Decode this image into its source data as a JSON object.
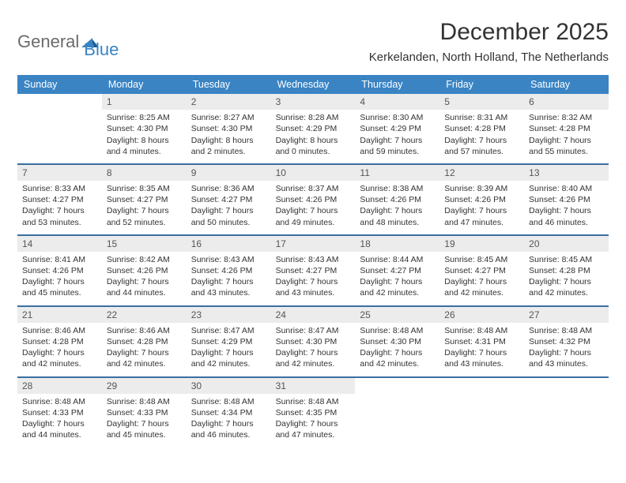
{
  "logo": {
    "general": "General",
    "blue": "Blue"
  },
  "title": "December 2025",
  "location": "Kerkelanden, North Holland, The Netherlands",
  "colors": {
    "header_bg": "#3a84c4",
    "header_text": "#ffffff",
    "daynum_bg": "#ececec",
    "week_border": "#3a6fa0",
    "text": "#333333",
    "logo_gray": "#6b6b6b",
    "logo_blue": "#3a84c4"
  },
  "weekdays": [
    "Sunday",
    "Monday",
    "Tuesday",
    "Wednesday",
    "Thursday",
    "Friday",
    "Saturday"
  ],
  "weeks": [
    [
      {
        "n": "",
        "sr": "",
        "ss": "",
        "dl": ""
      },
      {
        "n": "1",
        "sr": "Sunrise: 8:25 AM",
        "ss": "Sunset: 4:30 PM",
        "dl": "Daylight: 8 hours and 4 minutes."
      },
      {
        "n": "2",
        "sr": "Sunrise: 8:27 AM",
        "ss": "Sunset: 4:30 PM",
        "dl": "Daylight: 8 hours and 2 minutes."
      },
      {
        "n": "3",
        "sr": "Sunrise: 8:28 AM",
        "ss": "Sunset: 4:29 PM",
        "dl": "Daylight: 8 hours and 0 minutes."
      },
      {
        "n": "4",
        "sr": "Sunrise: 8:30 AM",
        "ss": "Sunset: 4:29 PM",
        "dl": "Daylight: 7 hours and 59 minutes."
      },
      {
        "n": "5",
        "sr": "Sunrise: 8:31 AM",
        "ss": "Sunset: 4:28 PM",
        "dl": "Daylight: 7 hours and 57 minutes."
      },
      {
        "n": "6",
        "sr": "Sunrise: 8:32 AM",
        "ss": "Sunset: 4:28 PM",
        "dl": "Daylight: 7 hours and 55 minutes."
      }
    ],
    [
      {
        "n": "7",
        "sr": "Sunrise: 8:33 AM",
        "ss": "Sunset: 4:27 PM",
        "dl": "Daylight: 7 hours and 53 minutes."
      },
      {
        "n": "8",
        "sr": "Sunrise: 8:35 AM",
        "ss": "Sunset: 4:27 PM",
        "dl": "Daylight: 7 hours and 52 minutes."
      },
      {
        "n": "9",
        "sr": "Sunrise: 8:36 AM",
        "ss": "Sunset: 4:27 PM",
        "dl": "Daylight: 7 hours and 50 minutes."
      },
      {
        "n": "10",
        "sr": "Sunrise: 8:37 AM",
        "ss": "Sunset: 4:26 PM",
        "dl": "Daylight: 7 hours and 49 minutes."
      },
      {
        "n": "11",
        "sr": "Sunrise: 8:38 AM",
        "ss": "Sunset: 4:26 PM",
        "dl": "Daylight: 7 hours and 48 minutes."
      },
      {
        "n": "12",
        "sr": "Sunrise: 8:39 AM",
        "ss": "Sunset: 4:26 PM",
        "dl": "Daylight: 7 hours and 47 minutes."
      },
      {
        "n": "13",
        "sr": "Sunrise: 8:40 AM",
        "ss": "Sunset: 4:26 PM",
        "dl": "Daylight: 7 hours and 46 minutes."
      }
    ],
    [
      {
        "n": "14",
        "sr": "Sunrise: 8:41 AM",
        "ss": "Sunset: 4:26 PM",
        "dl": "Daylight: 7 hours and 45 minutes."
      },
      {
        "n": "15",
        "sr": "Sunrise: 8:42 AM",
        "ss": "Sunset: 4:26 PM",
        "dl": "Daylight: 7 hours and 44 minutes."
      },
      {
        "n": "16",
        "sr": "Sunrise: 8:43 AM",
        "ss": "Sunset: 4:26 PM",
        "dl": "Daylight: 7 hours and 43 minutes."
      },
      {
        "n": "17",
        "sr": "Sunrise: 8:43 AM",
        "ss": "Sunset: 4:27 PM",
        "dl": "Daylight: 7 hours and 43 minutes."
      },
      {
        "n": "18",
        "sr": "Sunrise: 8:44 AM",
        "ss": "Sunset: 4:27 PM",
        "dl": "Daylight: 7 hours and 42 minutes."
      },
      {
        "n": "19",
        "sr": "Sunrise: 8:45 AM",
        "ss": "Sunset: 4:27 PM",
        "dl": "Daylight: 7 hours and 42 minutes."
      },
      {
        "n": "20",
        "sr": "Sunrise: 8:45 AM",
        "ss": "Sunset: 4:28 PM",
        "dl": "Daylight: 7 hours and 42 minutes."
      }
    ],
    [
      {
        "n": "21",
        "sr": "Sunrise: 8:46 AM",
        "ss": "Sunset: 4:28 PM",
        "dl": "Daylight: 7 hours and 42 minutes."
      },
      {
        "n": "22",
        "sr": "Sunrise: 8:46 AM",
        "ss": "Sunset: 4:28 PM",
        "dl": "Daylight: 7 hours and 42 minutes."
      },
      {
        "n": "23",
        "sr": "Sunrise: 8:47 AM",
        "ss": "Sunset: 4:29 PM",
        "dl": "Daylight: 7 hours and 42 minutes."
      },
      {
        "n": "24",
        "sr": "Sunrise: 8:47 AM",
        "ss": "Sunset: 4:30 PM",
        "dl": "Daylight: 7 hours and 42 minutes."
      },
      {
        "n": "25",
        "sr": "Sunrise: 8:48 AM",
        "ss": "Sunset: 4:30 PM",
        "dl": "Daylight: 7 hours and 42 minutes."
      },
      {
        "n": "26",
        "sr": "Sunrise: 8:48 AM",
        "ss": "Sunset: 4:31 PM",
        "dl": "Daylight: 7 hours and 43 minutes."
      },
      {
        "n": "27",
        "sr": "Sunrise: 8:48 AM",
        "ss": "Sunset: 4:32 PM",
        "dl": "Daylight: 7 hours and 43 minutes."
      }
    ],
    [
      {
        "n": "28",
        "sr": "Sunrise: 8:48 AM",
        "ss": "Sunset: 4:33 PM",
        "dl": "Daylight: 7 hours and 44 minutes."
      },
      {
        "n": "29",
        "sr": "Sunrise: 8:48 AM",
        "ss": "Sunset: 4:33 PM",
        "dl": "Daylight: 7 hours and 45 minutes."
      },
      {
        "n": "30",
        "sr": "Sunrise: 8:48 AM",
        "ss": "Sunset: 4:34 PM",
        "dl": "Daylight: 7 hours and 46 minutes."
      },
      {
        "n": "31",
        "sr": "Sunrise: 8:48 AM",
        "ss": "Sunset: 4:35 PM",
        "dl": "Daylight: 7 hours and 47 minutes."
      },
      {
        "n": "",
        "sr": "",
        "ss": "",
        "dl": ""
      },
      {
        "n": "",
        "sr": "",
        "ss": "",
        "dl": ""
      },
      {
        "n": "",
        "sr": "",
        "ss": "",
        "dl": ""
      }
    ]
  ]
}
